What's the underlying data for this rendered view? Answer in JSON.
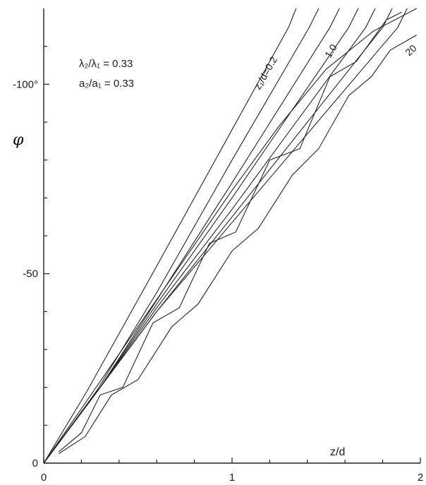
{
  "chart_data": {
    "type": "line",
    "xlabel": "z/d",
    "ylabel": "φ",
    "xlim": [
      0,
      2
    ],
    "ylim": [
      0,
      -120
    ],
    "x_ticks": [
      {
        "value": 0,
        "label": "0"
      },
      {
        "value": 1,
        "label": "1"
      },
      {
        "value": 2,
        "label": "2"
      }
    ],
    "x_minor_ticks": [
      0.2,
      0.4,
      0.6,
      0.8,
      1.2,
      1.4,
      1.6,
      1.8
    ],
    "y_ticks": [
      {
        "value": 0,
        "label": "0"
      },
      {
        "value": -50,
        "label": "-50"
      },
      {
        "value": -100,
        "label": "-100°"
      }
    ],
    "y_minor_ticks": [
      -10,
      -20,
      -30,
      -40,
      -60,
      -70,
      -80,
      -90,
      -110
    ],
    "annotations": [
      {
        "text": "λ₂/λ₁ = 0.33"
      },
      {
        "text": "a₂/a₁ = 0.33"
      }
    ],
    "curve_labels": [
      "z₁/d=0.2",
      "1.0",
      "20"
    ],
    "series": [
      {
        "values": [
          [
            0,
            0
          ],
          [
            0.23,
            -19
          ],
          [
            0.6,
            -52
          ],
          [
            1.0,
            -88
          ],
          [
            1.3,
            -115
          ],
          [
            1.34,
            -120
          ]
        ]
      },
      {
        "values": [
          [
            0,
            0
          ],
          [
            0.28,
            -19
          ],
          [
            0.6,
            -45
          ],
          [
            1.0,
            -80
          ],
          [
            1.41,
            -115
          ],
          [
            1.46,
            -120
          ]
        ]
      },
      {
        "values": [
          [
            0,
            0
          ],
          [
            0.3,
            -20
          ],
          [
            0.6,
            -43
          ],
          [
            1.0,
            -74
          ],
          [
            1.52,
            -115
          ],
          [
            1.57,
            -120
          ]
        ]
      },
      {
        "values": [
          [
            0,
            0
          ],
          [
            0.3,
            -20
          ],
          [
            0.6,
            -42
          ],
          [
            1.0,
            -70
          ],
          [
            1.62,
            -115
          ],
          [
            1.67,
            -120
          ]
        ]
      },
      {
        "values": [
          [
            0,
            0
          ],
          [
            0.3,
            -20
          ],
          [
            0.6,
            -41
          ],
          [
            1.0,
            -67
          ],
          [
            1.71,
            -115
          ],
          [
            1.76,
            -120
          ]
        ]
      },
      {
        "values": [
          [
            0,
            0
          ],
          [
            0.3,
            -20
          ],
          [
            0.6,
            -40
          ],
          [
            1.0,
            -65
          ],
          [
            1.8,
            -115
          ],
          [
            1.85,
            -120
          ]
        ]
      },
      {
        "values": [
          [
            0,
            0
          ],
          [
            0.3,
            -20
          ],
          [
            0.6,
            -40
          ],
          [
            1.0,
            -63.5
          ],
          [
            1.88,
            -115
          ],
          [
            1.93,
            -120
          ]
        ]
      },
      {
        "values": [
          [
            0.08,
            -3
          ],
          [
            0.2,
            -8
          ],
          [
            0.3,
            -18
          ],
          [
            0.42,
            -20
          ],
          [
            0.58,
            -37
          ],
          [
            0.72,
            -41
          ],
          [
            0.88,
            -58
          ],
          [
            1.02,
            -61
          ],
          [
            1.2,
            -80
          ],
          [
            1.36,
            -83
          ],
          [
            1.52,
            -102
          ],
          [
            1.66,
            -106
          ],
          [
            1.82,
            -117
          ],
          [
            1.9,
            -119
          ]
        ]
      },
      {
        "values": [
          [
            0.08,
            -2.5
          ],
          [
            0.22,
            -7
          ],
          [
            0.36,
            -18
          ],
          [
            0.5,
            -22
          ],
          [
            0.68,
            -36
          ],
          [
            0.82,
            -42
          ],
          [
            1.0,
            -56
          ],
          [
            1.14,
            -62
          ],
          [
            1.32,
            -76
          ],
          [
            1.46,
            -83
          ],
          [
            1.62,
            -97
          ],
          [
            1.74,
            -102
          ],
          [
            1.84,
            -109
          ],
          [
            1.98,
            -113
          ]
        ]
      },
      {
        "values": [
          [
            0,
            0
          ],
          [
            0.25,
            -18
          ],
          [
            0.5,
            -36
          ],
          [
            0.75,
            -54
          ],
          [
            1.0,
            -72
          ],
          [
            1.25,
            -89
          ],
          [
            1.5,
            -104
          ],
          [
            1.75,
            -114
          ],
          [
            1.98,
            -120
          ]
        ]
      }
    ]
  }
}
